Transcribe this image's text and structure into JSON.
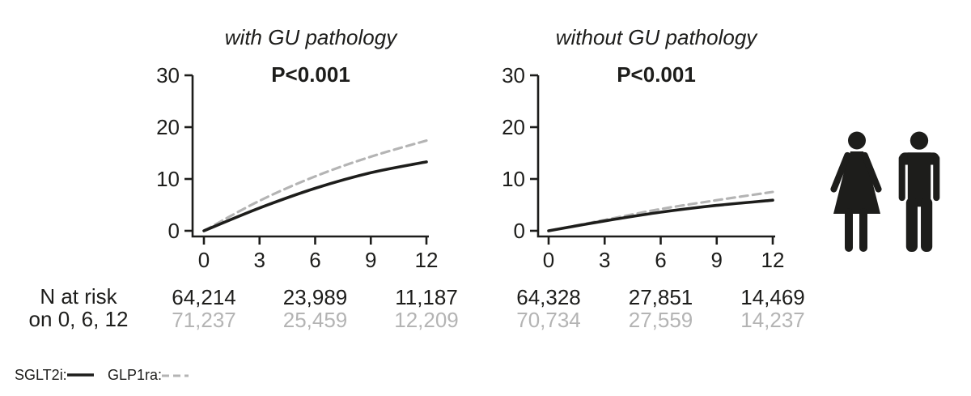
{
  "colors": {
    "sglt2i": "#1d1d1b",
    "glp1ra": "#b4b4b4",
    "axis": "#1d1d1b",
    "background": "#ffffff"
  },
  "legend": {
    "sglt2i_label": "SGLT2i:",
    "glp1ra_label": "GLP1ra:"
  },
  "risk_label": {
    "line1": "N at risk",
    "line2": "on 0, 6, 12"
  },
  "icons": {
    "left": "female-pictogram",
    "right": "male-pictogram"
  },
  "chart_data": [
    {
      "type": "line",
      "title": "with GU pathology",
      "p_value": "P<0.001",
      "xlabel": "",
      "ylabel": "",
      "xlim": [
        0,
        12
      ],
      "ylim": [
        0,
        30
      ],
      "x_ticks": [
        "0",
        "3",
        "6",
        "9",
        "12"
      ],
      "y_ticks": [
        "0",
        "10",
        "20",
        "30"
      ],
      "grid": false,
      "x": [
        0,
        3,
        6,
        9,
        12
      ],
      "series": [
        {
          "name": "GLP1ra",
          "line_style": "dashed",
          "color_key": "glp1ra",
          "values": [
            0,
            5.8,
            10.5,
            14.3,
            17.4
          ]
        },
        {
          "name": "SGLT2i",
          "line_style": "solid",
          "color_key": "sglt2i",
          "values": [
            0,
            4.4,
            8.2,
            11.2,
            13.3
          ]
        }
      ],
      "n_at_risk": {
        "times": [
          0,
          6,
          12
        ],
        "rows": [
          {
            "name": "SGLT2i",
            "color_key": "sglt2i",
            "values": [
              "64,214",
              "23,989",
              "11,187"
            ]
          },
          {
            "name": "GLP1ra",
            "color_key": "glp1ra",
            "values": [
              "71,237",
              "25,459",
              "12,209"
            ]
          }
        ]
      }
    },
    {
      "type": "line",
      "title": "without GU pathology",
      "p_value": "P<0.001",
      "xlabel": "",
      "ylabel": "",
      "xlim": [
        0,
        12
      ],
      "ylim": [
        0,
        30
      ],
      "x_ticks": [
        "0",
        "3",
        "6",
        "9",
        "12"
      ],
      "y_ticks": [
        "0",
        "10",
        "20",
        "30"
      ],
      "grid": false,
      "x": [
        0,
        3,
        6,
        9,
        12
      ],
      "series": [
        {
          "name": "GLP1ra",
          "line_style": "dashed",
          "color_key": "glp1ra",
          "values": [
            0,
            2.1,
            4.2,
            5.9,
            7.5
          ]
        },
        {
          "name": "SGLT2i",
          "line_style": "solid",
          "color_key": "sglt2i",
          "values": [
            0,
            1.9,
            3.6,
            4.9,
            5.9
          ]
        }
      ],
      "n_at_risk": {
        "times": [
          0,
          6,
          12
        ],
        "rows": [
          {
            "name": "SGLT2i",
            "color_key": "sglt2i",
            "values": [
              "64,328",
              "27,851",
              "14,469"
            ]
          },
          {
            "name": "GLP1ra",
            "color_key": "glp1ra",
            "values": [
              "70,734",
              "27,559",
              "14,237"
            ]
          }
        ]
      }
    }
  ]
}
